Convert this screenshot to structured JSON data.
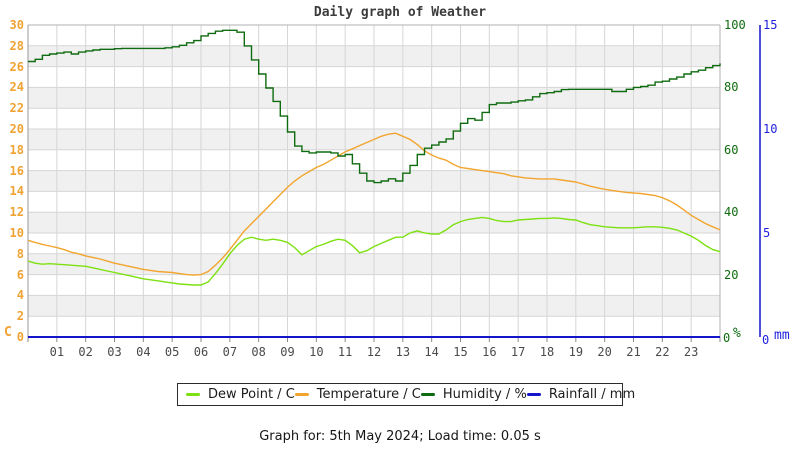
{
  "title": "Daily graph of Weather",
  "footer": "Graph for: 5th May 2024; Load time: 0.05 s",
  "colors": {
    "dew_point": "#7de010",
    "temperature": "#f2a52e",
    "humidity": "#0f6b0f",
    "rainfall": "#1414cc",
    "left_axis_labels": "#f0a232",
    "humidity_axis_labels": "#0f6b0f",
    "rainfall_axis_labels": "#2222dd",
    "grid_line": "#d6d6d6",
    "band_fill": "#f0f0f0",
    "plot_border": "#b0b0b0",
    "axis_tick": "#888888"
  },
  "chart_data": {
    "type": "line",
    "title": "Daily graph of Weather",
    "x": {
      "min": 0,
      "max": 24,
      "ticks": [
        "01",
        "02",
        "03",
        "04",
        "05",
        "06",
        "07",
        "08",
        "09",
        "10",
        "11",
        "12",
        "13",
        "14",
        "15",
        "16",
        "17",
        "18",
        "19",
        "20",
        "21",
        "22",
        "23"
      ],
      "grid": true
    },
    "y_left": {
      "unit": "C",
      "min": 0,
      "max": 30,
      "ticks": [
        30,
        28,
        26,
        24,
        22,
        20,
        18,
        16,
        14,
        12,
        10,
        8,
        6,
        4,
        2,
        0
      ]
    },
    "y_right_humidity": {
      "unit": "%",
      "min": 0,
      "max": 100,
      "ticks": [
        100,
        80,
        60,
        40,
        20
      ],
      "zero_label": "0"
    },
    "y_right_rainfall": {
      "unit": "mm",
      "min": 0,
      "max": 15,
      "ticks": [
        15,
        10,
        5
      ],
      "zero_label": "0"
    },
    "legend_position": "bottom",
    "series": [
      {
        "name": "Dew Point / C",
        "axis": "left",
        "color": "#7de010",
        "style": "line",
        "points": [
          [
            0,
            7.3
          ],
          [
            0.25,
            7.1
          ],
          [
            0.5,
            7.0
          ],
          [
            0.75,
            7.05
          ],
          [
            1,
            7.0
          ],
          [
            1.25,
            6.95
          ],
          [
            1.5,
            6.9
          ],
          [
            1.75,
            6.85
          ],
          [
            2,
            6.8
          ],
          [
            2.25,
            6.65
          ],
          [
            2.5,
            6.5
          ],
          [
            2.75,
            6.35
          ],
          [
            3,
            6.2
          ],
          [
            3.25,
            6.05
          ],
          [
            3.5,
            5.9
          ],
          [
            3.75,
            5.75
          ],
          [
            4,
            5.6
          ],
          [
            4.25,
            5.5
          ],
          [
            4.5,
            5.4
          ],
          [
            4.75,
            5.3
          ],
          [
            5,
            5.2
          ],
          [
            5.25,
            5.1
          ],
          [
            5.5,
            5.05
          ],
          [
            5.75,
            5.0
          ],
          [
            6,
            5.0
          ],
          [
            6.25,
            5.3
          ],
          [
            6.5,
            6.1
          ],
          [
            6.75,
            7.0
          ],
          [
            7,
            8.0
          ],
          [
            7.25,
            8.8
          ],
          [
            7.5,
            9.4
          ],
          [
            7.75,
            9.6
          ],
          [
            8,
            9.4
          ],
          [
            8.25,
            9.3
          ],
          [
            8.5,
            9.4
          ],
          [
            8.75,
            9.3
          ],
          [
            9,
            9.1
          ],
          [
            9.25,
            8.6
          ],
          [
            9.5,
            7.9
          ],
          [
            9.75,
            8.3
          ],
          [
            10,
            8.7
          ],
          [
            10.25,
            8.9
          ],
          [
            10.5,
            9.2
          ],
          [
            10.75,
            9.4
          ],
          [
            11,
            9.3
          ],
          [
            11.25,
            8.8
          ],
          [
            11.5,
            8.1
          ],
          [
            11.75,
            8.3
          ],
          [
            12,
            8.7
          ],
          [
            12.25,
            9.0
          ],
          [
            12.5,
            9.3
          ],
          [
            12.75,
            9.6
          ],
          [
            13,
            9.6
          ],
          [
            13.25,
            10.0
          ],
          [
            13.5,
            10.2
          ],
          [
            13.75,
            10.0
          ],
          [
            14,
            9.9
          ],
          [
            14.25,
            9.9
          ],
          [
            14.5,
            10.3
          ],
          [
            14.75,
            10.8
          ],
          [
            15,
            11.1
          ],
          [
            15.25,
            11.3
          ],
          [
            15.5,
            11.4
          ],
          [
            15.75,
            11.5
          ],
          [
            16,
            11.4
          ],
          [
            16.25,
            11.2
          ],
          [
            16.5,
            11.1
          ],
          [
            16.75,
            11.1
          ],
          [
            17,
            11.25
          ],
          [
            17.25,
            11.3
          ],
          [
            17.5,
            11.35
          ],
          [
            17.75,
            11.4
          ],
          [
            18,
            11.4
          ],
          [
            18.25,
            11.45
          ],
          [
            18.5,
            11.4
          ],
          [
            18.75,
            11.3
          ],
          [
            19,
            11.25
          ],
          [
            19.25,
            11.0
          ],
          [
            19.5,
            10.8
          ],
          [
            19.75,
            10.7
          ],
          [
            20,
            10.6
          ],
          [
            20.25,
            10.55
          ],
          [
            20.5,
            10.5
          ],
          [
            20.75,
            10.5
          ],
          [
            21,
            10.5
          ],
          [
            21.25,
            10.55
          ],
          [
            21.5,
            10.6
          ],
          [
            21.75,
            10.6
          ],
          [
            22,
            10.55
          ],
          [
            22.25,
            10.45
          ],
          [
            22.5,
            10.3
          ],
          [
            22.75,
            10.0
          ],
          [
            23,
            9.7
          ],
          [
            23.25,
            9.3
          ],
          [
            23.5,
            8.8
          ],
          [
            23.75,
            8.4
          ],
          [
            24,
            8.2
          ]
        ]
      },
      {
        "name": "Temperature / C",
        "axis": "left",
        "color": "#f2a52e",
        "style": "line",
        "points": [
          [
            0,
            9.3
          ],
          [
            0.25,
            9.1
          ],
          [
            0.5,
            8.9
          ],
          [
            0.75,
            8.75
          ],
          [
            1,
            8.6
          ],
          [
            1.25,
            8.4
          ],
          [
            1.5,
            8.15
          ],
          [
            1.75,
            8.0
          ],
          [
            2,
            7.8
          ],
          [
            2.25,
            7.65
          ],
          [
            2.5,
            7.5
          ],
          [
            2.75,
            7.3
          ],
          [
            3,
            7.1
          ],
          [
            3.25,
            6.95
          ],
          [
            3.5,
            6.8
          ],
          [
            3.75,
            6.65
          ],
          [
            4,
            6.5
          ],
          [
            4.25,
            6.4
          ],
          [
            4.5,
            6.3
          ],
          [
            4.75,
            6.25
          ],
          [
            5,
            6.2
          ],
          [
            5.25,
            6.1
          ],
          [
            5.5,
            6.0
          ],
          [
            5.75,
            5.95
          ],
          [
            6,
            6.0
          ],
          [
            6.25,
            6.3
          ],
          [
            6.5,
            6.9
          ],
          [
            6.75,
            7.6
          ],
          [
            7,
            8.4
          ],
          [
            7.25,
            9.3
          ],
          [
            7.5,
            10.2
          ],
          [
            7.75,
            10.9
          ],
          [
            8,
            11.6
          ],
          [
            8.25,
            12.3
          ],
          [
            8.5,
            13.0
          ],
          [
            8.75,
            13.7
          ],
          [
            9,
            14.4
          ],
          [
            9.25,
            15.0
          ],
          [
            9.5,
            15.5
          ],
          [
            9.75,
            15.9
          ],
          [
            10,
            16.3
          ],
          [
            10.25,
            16.6
          ],
          [
            10.5,
            17.0
          ],
          [
            10.75,
            17.4
          ],
          [
            11,
            17.8
          ],
          [
            11.25,
            18.1
          ],
          [
            11.5,
            18.4
          ],
          [
            11.75,
            18.7
          ],
          [
            12,
            19.0
          ],
          [
            12.25,
            19.3
          ],
          [
            12.5,
            19.5
          ],
          [
            12.75,
            19.6
          ],
          [
            13,
            19.3
          ],
          [
            13.25,
            19.0
          ],
          [
            13.5,
            18.5
          ],
          [
            13.75,
            17.9
          ],
          [
            14,
            17.5
          ],
          [
            14.25,
            17.2
          ],
          [
            14.5,
            17.0
          ],
          [
            14.75,
            16.6
          ],
          [
            15,
            16.3
          ],
          [
            15.25,
            16.2
          ],
          [
            15.5,
            16.1
          ],
          [
            15.75,
            16.0
          ],
          [
            16,
            15.9
          ],
          [
            16.25,
            15.8
          ],
          [
            16.5,
            15.7
          ],
          [
            16.75,
            15.5
          ],
          [
            17,
            15.4
          ],
          [
            17.25,
            15.3
          ],
          [
            17.5,
            15.25
          ],
          [
            17.75,
            15.2
          ],
          [
            18,
            15.2
          ],
          [
            18.25,
            15.2
          ],
          [
            18.5,
            15.1
          ],
          [
            18.75,
            15.0
          ],
          [
            19,
            14.9
          ],
          [
            19.25,
            14.7
          ],
          [
            19.5,
            14.5
          ],
          [
            19.75,
            14.35
          ],
          [
            20,
            14.2
          ],
          [
            20.25,
            14.1
          ],
          [
            20.5,
            14.0
          ],
          [
            20.75,
            13.9
          ],
          [
            21,
            13.85
          ],
          [
            21.25,
            13.8
          ],
          [
            21.5,
            13.7
          ],
          [
            21.75,
            13.6
          ],
          [
            22,
            13.4
          ],
          [
            22.25,
            13.1
          ],
          [
            22.5,
            12.7
          ],
          [
            22.75,
            12.2
          ],
          [
            23,
            11.7
          ],
          [
            23.25,
            11.3
          ],
          [
            23.5,
            10.9
          ],
          [
            23.75,
            10.6
          ],
          [
            24,
            10.3
          ]
        ]
      },
      {
        "name": "Humidity / %",
        "axis": "humidity",
        "color": "#0f6b0f",
        "style": "step",
        "points": [
          [
            0,
            88.3
          ],
          [
            0.25,
            89
          ],
          [
            0.5,
            90.3
          ],
          [
            0.75,
            90.7
          ],
          [
            1,
            91
          ],
          [
            1.25,
            91.3
          ],
          [
            1.5,
            90.7
          ],
          [
            1.75,
            91.3
          ],
          [
            2,
            91.7
          ],
          [
            2.25,
            92
          ],
          [
            2.5,
            92.2
          ],
          [
            2.75,
            92.2
          ],
          [
            3,
            92.4
          ],
          [
            3.25,
            92.5
          ],
          [
            3.5,
            92.5
          ],
          [
            3.75,
            92.5
          ],
          [
            4,
            92.5
          ],
          [
            4.25,
            92.5
          ],
          [
            4.5,
            92.5
          ],
          [
            4.75,
            92.7
          ],
          [
            5,
            93
          ],
          [
            5.25,
            93.5
          ],
          [
            5.5,
            94.3
          ],
          [
            5.75,
            95
          ],
          [
            6,
            96.5
          ],
          [
            6.25,
            97.3
          ],
          [
            6.5,
            98
          ],
          [
            6.75,
            98.3
          ],
          [
            7,
            98.3
          ],
          [
            7.25,
            97.7
          ],
          [
            7.5,
            93.3
          ],
          [
            7.75,
            88.8
          ],
          [
            8,
            84.3
          ],
          [
            8.25,
            79.8
          ],
          [
            8.5,
            75.5
          ],
          [
            8.75,
            70.8
          ],
          [
            9,
            65.7
          ],
          [
            9.25,
            61.2
          ],
          [
            9.5,
            59.5
          ],
          [
            9.75,
            59
          ],
          [
            10,
            59.3
          ],
          [
            10.25,
            59.3
          ],
          [
            10.5,
            59
          ],
          [
            10.75,
            58
          ],
          [
            11,
            58.5
          ],
          [
            11.25,
            55.5
          ],
          [
            11.5,
            52.5
          ],
          [
            11.75,
            50
          ],
          [
            12,
            49.5
          ],
          [
            12.25,
            50
          ],
          [
            12.5,
            50.7
          ],
          [
            12.75,
            50
          ],
          [
            13,
            52.5
          ],
          [
            13.25,
            55
          ],
          [
            13.5,
            58.5
          ],
          [
            13.75,
            60.5
          ],
          [
            14,
            61.5
          ],
          [
            14.25,
            62.5
          ],
          [
            14.5,
            63.5
          ],
          [
            14.75,
            66
          ],
          [
            15,
            68.5
          ],
          [
            15.25,
            70
          ],
          [
            15.5,
            69.5
          ],
          [
            15.75,
            72
          ],
          [
            16,
            74.5
          ],
          [
            16.25,
            75
          ],
          [
            16.5,
            75
          ],
          [
            16.75,
            75.3
          ],
          [
            17,
            75.7
          ],
          [
            17.25,
            76
          ],
          [
            17.5,
            77
          ],
          [
            17.75,
            78
          ],
          [
            18,
            78.3
          ],
          [
            18.25,
            78.7
          ],
          [
            18.5,
            79.3
          ],
          [
            18.75,
            79.4
          ],
          [
            19,
            79.4
          ],
          [
            19.25,
            79.4
          ],
          [
            19.5,
            79.4
          ],
          [
            19.75,
            79.4
          ],
          [
            20,
            79.4
          ],
          [
            20.25,
            78.7
          ],
          [
            20.5,
            78.7
          ],
          [
            20.75,
            79.4
          ],
          [
            21,
            80
          ],
          [
            21.25,
            80.3
          ],
          [
            21.5,
            80.7
          ],
          [
            21.75,
            81.7
          ],
          [
            22,
            82
          ],
          [
            22.25,
            82.7
          ],
          [
            22.5,
            83.3
          ],
          [
            22.75,
            84.3
          ],
          [
            23,
            85
          ],
          [
            23.25,
            85.5
          ],
          [
            23.5,
            86.3
          ],
          [
            23.75,
            87
          ],
          [
            24,
            87.7
          ]
        ]
      },
      {
        "name": "Rainfall / mm",
        "axis": "rainfall",
        "color": "#1414cc",
        "style": "line",
        "points": [
          [
            0,
            0
          ],
          [
            24,
            0
          ]
        ]
      }
    ]
  }
}
